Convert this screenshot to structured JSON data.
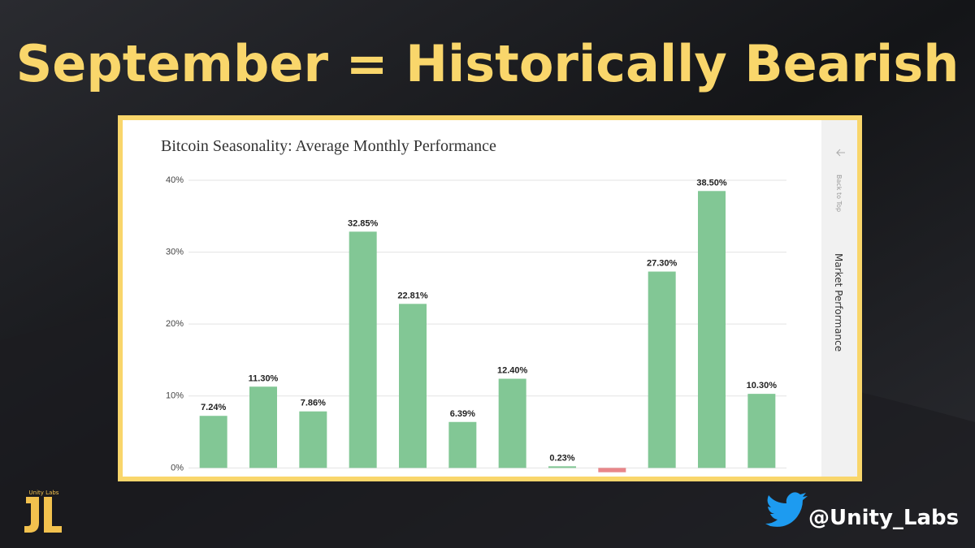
{
  "headline": "September = Historically Bearish",
  "brand": {
    "logo_text": "Unity Labs",
    "handle": "@Unity_Labs"
  },
  "sidebar": {
    "back_to_top": "Back to Top",
    "section": "Market Performance"
  },
  "chart_data": {
    "type": "bar",
    "title": "Bitcoin Seasonality: Average Monthly Performance",
    "values": [
      7.24,
      11.3,
      7.86,
      32.85,
      22.81,
      6.39,
      12.4,
      0.23,
      -0.6,
      27.3,
      38.5,
      10.3
    ],
    "value_labels": [
      "7.24%",
      "11.30%",
      "7.86%",
      "32.85%",
      "22.81%",
      "6.39%",
      "12.40%",
      "0.23%",
      null,
      "27.30%",
      "38.50%",
      "10.30%"
    ],
    "color": "#82c795",
    "negative_color": "#e8868a",
    "ylim": [
      -1.2,
      40
    ],
    "yticks": [
      {
        "value": 0,
        "label": "0%"
      },
      {
        "value": 10,
        "label": "10%"
      },
      {
        "value": 20,
        "label": "20%"
      },
      {
        "value": 30,
        "label": "30%"
      },
      {
        "value": 40,
        "label": "40%"
      }
    ],
    "grid": true
  }
}
